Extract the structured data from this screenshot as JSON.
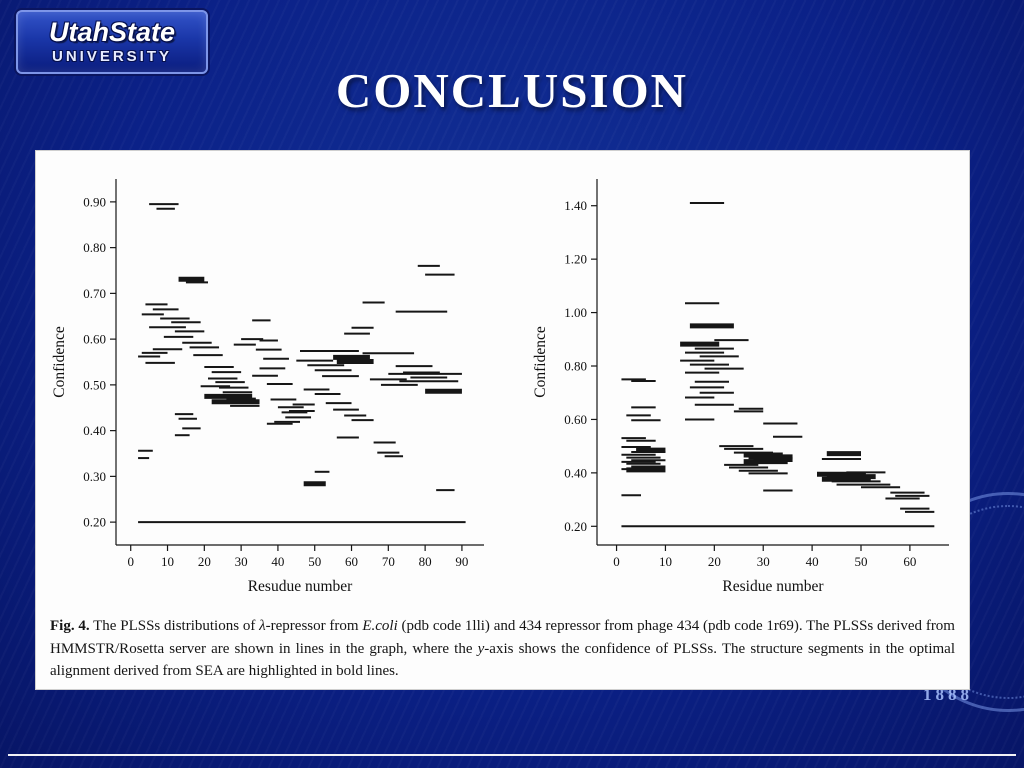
{
  "slide": {
    "title": "CONCLUSION"
  },
  "logo": {
    "line1": "UtahState",
    "line2": "UNIVERSITY"
  },
  "seal": {
    "year": "1888"
  },
  "figure": {
    "caption": {
      "label": "Fig. 4.",
      "parts": [
        {
          "t": " The PLSSs distributions of "
        },
        {
          "t": "λ",
          "i": 1
        },
        {
          "t": "-repressor from "
        },
        {
          "t": "E.coli",
          "i": 1
        },
        {
          "t": " (pdb code 1lli) and 434 repressor from phage 434 (pdb code 1r69). The PLSSs derived from HMMSTR/Rosetta server are shown in lines in the graph, where the "
        },
        {
          "t": "y",
          "i": 1
        },
        {
          "t": "-axis shows the confidence of PLSSs. The structure segments in the optimal alignment derived from SEA are highlighted in bold lines."
        }
      ]
    }
  },
  "chart_data": [
    {
      "type": "line",
      "subtype": "horizontal-segments",
      "title": "",
      "xlabel": "Resudue number",
      "ylabel": "Confidence",
      "xlim": [
        -4,
        96
      ],
      "ylim": [
        0.15,
        0.95
      ],
      "xticks": [
        0,
        10,
        20,
        30,
        40,
        50,
        60,
        70,
        80,
        90
      ],
      "yticks": [
        0.9,
        0.8,
        0.7,
        0.6,
        0.5,
        0.4,
        0.3,
        0.2
      ],
      "grid": false,
      "legend": false,
      "segments": [
        [
          5,
          13,
          0.895,
          0
        ],
        [
          7,
          12,
          0.885,
          0
        ],
        [
          13,
          20,
          0.731,
          1
        ],
        [
          15,
          21,
          0.724,
          0
        ],
        [
          78,
          84,
          0.76,
          0
        ],
        [
          80,
          88,
          0.741,
          0
        ],
        [
          4,
          10,
          0.676,
          0
        ],
        [
          63,
          69,
          0.68,
          0
        ],
        [
          6,
          13,
          0.665,
          0
        ],
        [
          72,
          86,
          0.66,
          0
        ],
        [
          3,
          9,
          0.654,
          0
        ],
        [
          8,
          16,
          0.645,
          0
        ],
        [
          33,
          38,
          0.641,
          0
        ],
        [
          11,
          19,
          0.637,
          0
        ],
        [
          5,
          15,
          0.626,
          0
        ],
        [
          60,
          66,
          0.625,
          0
        ],
        [
          12,
          20,
          0.617,
          0
        ],
        [
          58,
          65,
          0.612,
          0
        ],
        [
          9,
          17,
          0.605,
          0
        ],
        [
          30,
          36,
          0.6,
          0
        ],
        [
          35,
          40,
          0.597,
          0
        ],
        [
          14,
          22,
          0.592,
          0
        ],
        [
          28,
          34,
          0.588,
          0
        ],
        [
          16,
          24,
          0.582,
          0
        ],
        [
          6,
          14,
          0.578,
          0
        ],
        [
          34,
          41,
          0.577,
          0
        ],
        [
          46,
          62,
          0.574,
          0
        ],
        [
          3,
          10,
          0.57,
          0
        ],
        [
          63,
          77,
          0.569,
          0
        ],
        [
          17,
          25,
          0.565,
          0
        ],
        [
          2,
          8,
          0.562,
          0
        ],
        [
          55,
          65,
          0.56,
          1
        ],
        [
          36,
          43,
          0.557,
          0
        ],
        [
          45,
          55,
          0.553,
          0
        ],
        [
          56,
          66,
          0.551,
          1
        ],
        [
          4,
          12,
          0.548,
          0
        ],
        [
          48,
          58,
          0.543,
          0
        ],
        [
          72,
          82,
          0.541,
          0
        ],
        [
          20,
          28,
          0.539,
          0
        ],
        [
          35,
          42,
          0.536,
          0
        ],
        [
          50,
          60,
          0.532,
          0
        ],
        [
          22,
          30,
          0.528,
          0
        ],
        [
          74,
          84,
          0.527,
          0
        ],
        [
          70,
          90,
          0.524,
          0
        ],
        [
          33,
          40,
          0.52,
          0
        ],
        [
          52,
          62,
          0.519,
          0
        ],
        [
          76,
          86,
          0.516,
          0
        ],
        [
          21,
          29,
          0.514,
          0
        ],
        [
          65,
          75,
          0.512,
          0
        ],
        [
          73,
          89,
          0.508,
          0
        ],
        [
          23,
          31,
          0.506,
          0
        ],
        [
          37,
          44,
          0.502,
          0
        ],
        [
          68,
          78,
          0.5,
          0
        ],
        [
          19,
          27,
          0.497,
          0
        ],
        [
          24,
          32,
          0.494,
          0
        ],
        [
          47,
          54,
          0.49,
          0
        ],
        [
          80,
          90,
          0.486,
          1
        ],
        [
          25,
          33,
          0.484,
          0
        ],
        [
          50,
          57,
          0.48,
          0
        ],
        [
          20,
          33,
          0.475,
          1
        ],
        [
          26,
          34,
          0.47,
          0
        ],
        [
          38,
          45,
          0.468,
          0
        ],
        [
          22,
          35,
          0.463,
          1
        ],
        [
          53,
          60,
          0.46,
          0
        ],
        [
          44,
          50,
          0.457,
          0
        ],
        [
          27,
          35,
          0.454,
          0
        ],
        [
          40,
          47,
          0.451,
          0
        ],
        [
          55,
          62,
          0.446,
          0
        ],
        [
          43,
          50,
          0.443,
          0
        ],
        [
          41,
          48,
          0.44,
          0
        ],
        [
          12,
          17,
          0.436,
          0
        ],
        [
          58,
          64,
          0.433,
          0
        ],
        [
          42,
          49,
          0.429,
          0
        ],
        [
          13,
          18,
          0.426,
          0
        ],
        [
          60,
          66,
          0.423,
          0
        ],
        [
          39,
          46,
          0.419,
          0
        ],
        [
          37,
          44,
          0.415,
          0
        ],
        [
          14,
          19,
          0.405,
          0
        ],
        [
          12,
          16,
          0.39,
          0
        ],
        [
          56,
          62,
          0.385,
          0
        ],
        [
          66,
          72,
          0.374,
          0
        ],
        [
          2,
          6,
          0.356,
          0
        ],
        [
          67,
          73,
          0.352,
          0
        ],
        [
          69,
          74,
          0.344,
          0
        ],
        [
          2,
          5,
          0.34,
          0
        ],
        [
          50,
          54,
          0.31,
          0
        ],
        [
          47,
          53,
          0.284,
          1
        ],
        [
          83,
          88,
          0.27,
          0
        ],
        [
          2,
          91,
          0.2,
          0
        ]
      ]
    },
    {
      "type": "line",
      "subtype": "horizontal-segments",
      "title": "",
      "xlabel": "Residue number",
      "ylabel": "Confidence",
      "xlim": [
        -4,
        68
      ],
      "ylim": [
        0.13,
        1.5
      ],
      "xticks": [
        0,
        10,
        20,
        30,
        40,
        50,
        60
      ],
      "yticks": [
        1.4,
        1.2,
        1.0,
        0.8,
        0.6,
        0.4,
        0.2
      ],
      "grid": false,
      "legend": false,
      "segments": [
        [
          15,
          22,
          1.41,
          0
        ],
        [
          14,
          21,
          1.035,
          0
        ],
        [
          15,
          24,
          0.95,
          1
        ],
        [
          20,
          27,
          0.897,
          0
        ],
        [
          13,
          21,
          0.882,
          1
        ],
        [
          16,
          24,
          0.865,
          0
        ],
        [
          14,
          22,
          0.85,
          0
        ],
        [
          17,
          25,
          0.836,
          0
        ],
        [
          13,
          20,
          0.82,
          0
        ],
        [
          15,
          23,
          0.805,
          0
        ],
        [
          18,
          26,
          0.79,
          0
        ],
        [
          14,
          21,
          0.775,
          0
        ],
        [
          1,
          6,
          0.75,
          0
        ],
        [
          3,
          8,
          0.744,
          0
        ],
        [
          16,
          23,
          0.741,
          0
        ],
        [
          15,
          22,
          0.72,
          0
        ],
        [
          17,
          24,
          0.7,
          0
        ],
        [
          14,
          20,
          0.682,
          0
        ],
        [
          16,
          24,
          0.655,
          0
        ],
        [
          3,
          8,
          0.645,
          0
        ],
        [
          25,
          30,
          0.64,
          0
        ],
        [
          24,
          30,
          0.63,
          0
        ],
        [
          2,
          7,
          0.615,
          0
        ],
        [
          14,
          20,
          0.6,
          0
        ],
        [
          3,
          9,
          0.597,
          0
        ],
        [
          30,
          37,
          0.585,
          0
        ],
        [
          32,
          38,
          0.535,
          0
        ],
        [
          1,
          6,
          0.53,
          0
        ],
        [
          2,
          8,
          0.52,
          0
        ],
        [
          21,
          28,
          0.5,
          0
        ],
        [
          1,
          7,
          0.497,
          0
        ],
        [
          22,
          30,
          0.49,
          0
        ],
        [
          4,
          10,
          0.485,
          1
        ],
        [
          3,
          10,
          0.478,
          0
        ],
        [
          24,
          32,
          0.476,
          0
        ],
        [
          43,
          50,
          0.472,
          1
        ],
        [
          1,
          8,
          0.468,
          0
        ],
        [
          26,
          34,
          0.467,
          1
        ],
        [
          27,
          36,
          0.46,
          1
        ],
        [
          2,
          9,
          0.457,
          0
        ],
        [
          42,
          50,
          0.452,
          0
        ],
        [
          28,
          36,
          0.45,
          1
        ],
        [
          3,
          10,
          0.447,
          0
        ],
        [
          26,
          35,
          0.442,
          1
        ],
        [
          1,
          8,
          0.441,
          0
        ],
        [
          2,
          9,
          0.434,
          0
        ],
        [
          22,
          29,
          0.43,
          0
        ],
        [
          3,
          10,
          0.424,
          0
        ],
        [
          23,
          31,
          0.42,
          0
        ],
        [
          1,
          9,
          0.414,
          0
        ],
        [
          2,
          10,
          0.411,
          1
        ],
        [
          25,
          33,
          0.408,
          0
        ],
        [
          47,
          55,
          0.402,
          0
        ],
        [
          27,
          35,
          0.398,
          0
        ],
        [
          41,
          51,
          0.395,
          1
        ],
        [
          43,
          53,
          0.386,
          1
        ],
        [
          42,
          52,
          0.376,
          1
        ],
        [
          44,
          54,
          0.368,
          0
        ],
        [
          45,
          56,
          0.356,
          0
        ],
        [
          50,
          58,
          0.346,
          0
        ],
        [
          30,
          36,
          0.334,
          0
        ],
        [
          56,
          63,
          0.326,
          0
        ],
        [
          1,
          5,
          0.316,
          0
        ],
        [
          57,
          64,
          0.314,
          0
        ],
        [
          55,
          62,
          0.304,
          0
        ],
        [
          58,
          64,
          0.266,
          0
        ],
        [
          59,
          65,
          0.254,
          0
        ],
        [
          1,
          65,
          0.2,
          0
        ]
      ]
    }
  ]
}
